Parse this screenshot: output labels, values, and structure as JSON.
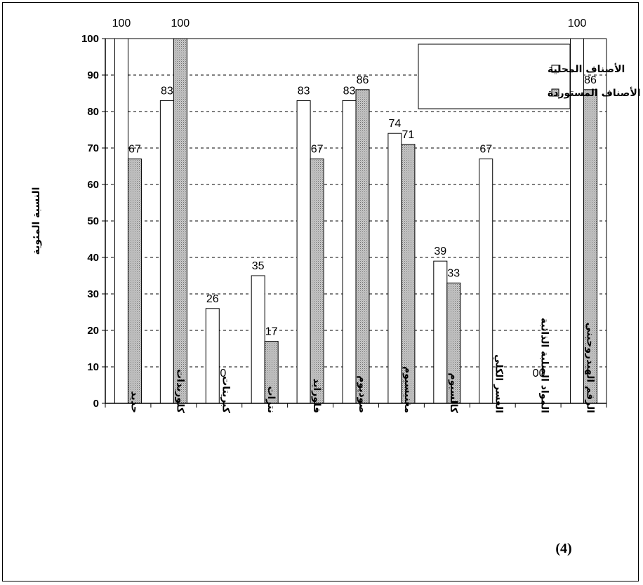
{
  "chart_data": {
    "type": "bar",
    "ylabel": "النسبة المئوية",
    "ylim": [
      0,
      100
    ],
    "yticks": [
      0,
      10,
      20,
      30,
      40,
      50,
      60,
      70,
      80,
      90,
      100
    ],
    "grid": "horizontal dashed",
    "legend_position": "top-right",
    "categories": [
      "حديد",
      "كلوريدات",
      "كبريتات",
      "نترات",
      "فلورايد",
      "صوديوم",
      "مغنيسيوم",
      "كالسيوم",
      "العسر الكلي",
      "المواد الصلبة الذائبة",
      "الرقم الهيدروجيني"
    ],
    "series": [
      {
        "name": "الأصناف المحلية",
        "values": [
          100,
          83,
          26,
          35,
          83,
          83,
          74,
          39,
          67,
          0,
          100
        ],
        "data_labels": [
          "100",
          "83",
          "26",
          "35",
          "83",
          "83",
          "74",
          "39",
          "67",
          "0",
          "100"
        ],
        "color": "#ffffff"
      },
      {
        "name": "الأصناف المستوردة",
        "values": [
          67,
          100,
          0,
          17,
          67,
          86,
          71,
          33,
          null,
          0,
          86
        ],
        "data_labels": [
          "67",
          "100",
          "0",
          "17",
          "67",
          "86",
          "71",
          "33",
          "",
          "0",
          "86"
        ],
        "color": "#c8c8c8"
      }
    ]
  },
  "figure_number": "(4)"
}
